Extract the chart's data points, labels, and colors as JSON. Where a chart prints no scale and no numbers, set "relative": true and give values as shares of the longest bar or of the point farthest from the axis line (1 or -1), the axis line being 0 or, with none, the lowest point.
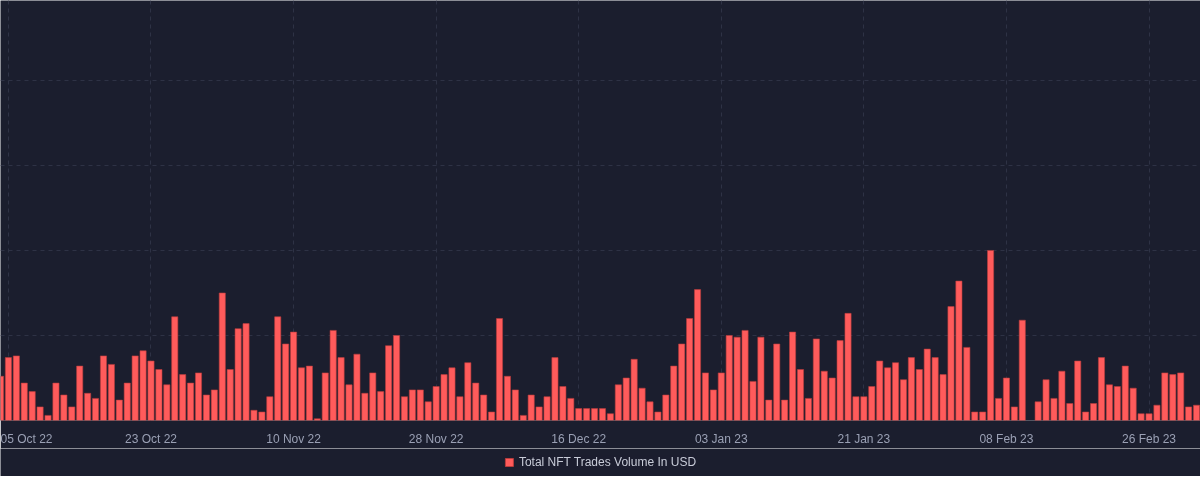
{
  "chart_data": {
    "type": "bar",
    "relative": true,
    "grid": true,
    "legend": "bottom",
    "x": [
      "2022-10-04",
      "2022-10-05",
      "2022-10-06",
      "2022-10-07",
      "2022-10-08",
      "2022-10-09",
      "2022-10-10",
      "2022-10-11",
      "2022-10-12",
      "2022-10-13",
      "2022-10-14",
      "2022-10-15",
      "2022-10-16",
      "2022-10-17",
      "2022-10-18",
      "2022-10-19",
      "2022-10-20",
      "2022-10-21",
      "2022-10-22",
      "2022-10-23",
      "2022-10-24",
      "2022-10-25",
      "2022-10-26",
      "2022-10-27",
      "2022-10-28",
      "2022-10-29",
      "2022-10-30",
      "2022-10-31",
      "2022-11-01",
      "2022-11-02",
      "2022-11-03",
      "2022-11-04",
      "2022-11-05",
      "2022-11-06",
      "2022-11-07",
      "2022-11-08",
      "2022-11-09",
      "2022-11-10",
      "2022-11-11",
      "2022-11-12",
      "2022-11-13",
      "2022-11-14",
      "2022-11-15",
      "2022-11-16",
      "2022-11-17",
      "2022-11-18",
      "2022-11-19",
      "2022-11-20",
      "2022-11-21",
      "2022-11-22",
      "2022-11-23",
      "2022-11-24",
      "2022-11-25",
      "2022-11-26",
      "2022-11-27",
      "2022-11-28",
      "2022-11-29",
      "2022-11-30",
      "2022-12-01",
      "2022-12-02",
      "2022-12-03",
      "2022-12-04",
      "2022-12-05",
      "2022-12-06",
      "2022-12-07",
      "2022-12-08",
      "2022-12-09",
      "2022-12-10",
      "2022-12-11",
      "2022-12-12",
      "2022-12-13",
      "2022-12-14",
      "2022-12-15",
      "2022-12-16",
      "2022-12-17",
      "2022-12-18",
      "2022-12-19",
      "2022-12-20",
      "2022-12-21",
      "2022-12-22",
      "2022-12-23",
      "2022-12-24",
      "2022-12-25",
      "2022-12-26",
      "2022-12-27",
      "2022-12-28",
      "2022-12-29",
      "2022-12-30",
      "2022-12-31",
      "2023-01-01",
      "2023-01-02",
      "2023-01-03",
      "2023-01-04",
      "2023-01-05",
      "2023-01-06",
      "2023-01-07",
      "2023-01-08",
      "2023-01-09",
      "2023-01-10",
      "2023-01-11",
      "2023-01-12",
      "2023-01-13",
      "2023-01-14",
      "2023-01-15",
      "2023-01-16",
      "2023-01-17",
      "2023-01-18",
      "2023-01-19",
      "2023-01-20",
      "2023-01-21",
      "2023-01-22",
      "2023-01-23",
      "2023-01-24",
      "2023-01-25",
      "2023-01-26",
      "2023-01-27",
      "2023-01-28",
      "2023-01-29",
      "2023-01-30",
      "2023-01-31",
      "2023-02-01",
      "2023-02-02",
      "2023-02-03",
      "2023-02-04",
      "2023-02-05",
      "2023-02-06",
      "2023-02-07",
      "2023-02-08",
      "2023-02-09",
      "2023-02-10",
      "2023-02-11",
      "2023-02-12",
      "2023-02-13",
      "2023-02-14",
      "2023-02-15",
      "2023-02-16",
      "2023-02-17",
      "2023-02-18",
      "2023-02-19",
      "2023-02-20",
      "2023-02-21",
      "2023-02-22",
      "2023-02-23",
      "2023-02-24",
      "2023-02-25",
      "2023-02-26",
      "2023-02-27",
      "2023-02-28",
      "2023-03-01",
      "2023-03-02",
      "2023-03-03",
      "2023-03-04"
    ],
    "xlim": [
      "2022-10-04T00:00",
      "2023-03-04T12:00"
    ],
    "xticks": [
      {
        "value": "2022-10-05",
        "label": "05 Oct 22"
      },
      {
        "value": "2022-10-23",
        "label": "23 Oct 22"
      },
      {
        "value": "2022-11-10",
        "label": "10 Nov 22"
      },
      {
        "value": "2022-11-28",
        "label": "28 Nov 22"
      },
      {
        "value": "2022-12-16",
        "label": "16 Dec 22"
      },
      {
        "value": "2023-01-03",
        "label": "03 Jan 23"
      },
      {
        "value": "2023-01-21",
        "label": "21 Jan 23"
      },
      {
        "value": "2023-02-08",
        "label": "08 Feb 23"
      },
      {
        "value": "2023-02-26",
        "label": "26 Feb 23"
      }
    ],
    "series": [
      {
        "name": "Total NFT Trades Volume In USD",
        "color": "#ff5b5b",
        "values": [
          0.26,
          0.37,
          0.38,
          0.22,
          0.17,
          0.08,
          0.03,
          0.22,
          0.15,
          0.08,
          0.32,
          0.16,
          0.13,
          0.38,
          0.33,
          0.12,
          0.22,
          0.38,
          0.41,
          0.35,
          0.3,
          0.21,
          0.61,
          0.27,
          0.22,
          0.28,
          0.15,
          0.18,
          0.75,
          0.3,
          0.54,
          0.57,
          0.06,
          0.05,
          0.14,
          0.61,
          0.45,
          0.52,
          0.31,
          0.32,
          0.01,
          0.28,
          0.53,
          0.37,
          0.21,
          0.39,
          0.16,
          0.28,
          0.17,
          0.44,
          0.5,
          0.14,
          0.18,
          0.18,
          0.11,
          0.2,
          0.27,
          0.31,
          0.14,
          0.34,
          0.22,
          0.15,
          0.05,
          0.6,
          0.26,
          0.18,
          0.03,
          0.15,
          0.08,
          0.14,
          0.37,
          0.2,
          0.13,
          0.07,
          0.07,
          0.07,
          0.07,
          0.04,
          0.21,
          0.25,
          0.36,
          0.19,
          0.11,
          0.05,
          0.15,
          0.32,
          0.45,
          0.6,
          0.77,
          0.28,
          0.18,
          0.28,
          0.5,
          0.49,
          0.53,
          0.23,
          0.49,
          0.12,
          0.45,
          0.12,
          0.52,
          0.3,
          0.13,
          0.48,
          0.29,
          0.25,
          0.47,
          0.63,
          0.14,
          0.14,
          0.2,
          0.35,
          0.31,
          0.34,
          0.24,
          0.37,
          0.3,
          0.42,
          0.37,
          0.27,
          0.67,
          0.82,
          0.43,
          0.05,
          0.05,
          1.0,
          0.13,
          0.25,
          0.08,
          0.59,
          null,
          0.11,
          0.24,
          0.13,
          0.29,
          0.1,
          0.35,
          0.05,
          0.1,
          0.37,
          0.21,
          0.2,
          0.32,
          0.19,
          0.04,
          0.04,
          0.09,
          0.28,
          0.27,
          0.28,
          0.08,
          0.09
        ]
      }
    ]
  }
}
